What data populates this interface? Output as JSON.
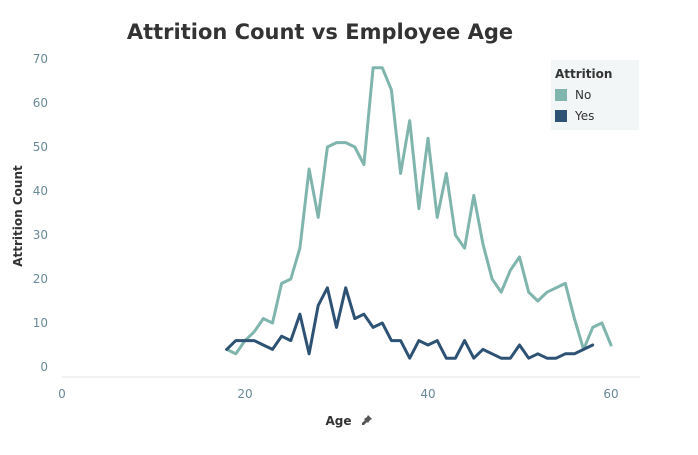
{
  "chart_data": {
    "type": "line",
    "title": "Attrition Count vs Employee Age",
    "xlabel": "Age",
    "ylabel": "Attrition Count",
    "xlim": [
      0,
      62
    ],
    "ylim": [
      0,
      70
    ],
    "xticks": [
      0,
      20,
      40,
      60
    ],
    "yticks": [
      0,
      10,
      20,
      30,
      40,
      50,
      60,
      70
    ],
    "grid": false,
    "legend": {
      "title": "Attrition",
      "position": "top-right"
    },
    "series": [
      {
        "name": "No",
        "color": "#7fb5ad",
        "x": [
          18,
          19,
          20,
          21,
          22,
          23,
          24,
          25,
          26,
          27,
          28,
          29,
          30,
          31,
          32,
          33,
          34,
          35,
          36,
          37,
          38,
          39,
          40,
          41,
          42,
          43,
          44,
          45,
          46,
          47,
          48,
          49,
          50,
          51,
          52,
          53,
          54,
          55,
          56,
          57,
          58,
          59,
          60
        ],
        "y": [
          4,
          3,
          6,
          8,
          11,
          10,
          19,
          20,
          27,
          45,
          34,
          50,
          51,
          51,
          50,
          46,
          68,
          68,
          63,
          44,
          56,
          36,
          52,
          34,
          44,
          30,
          27,
          39,
          28,
          20,
          17,
          22,
          25,
          17,
          15,
          17,
          18,
          19,
          11,
          4,
          9,
          10,
          5
        ]
      },
      {
        "name": "Yes",
        "color": "#2e5274",
        "x": [
          18,
          19,
          20,
          21,
          22,
          23,
          24,
          25,
          26,
          27,
          28,
          29,
          30,
          31,
          32,
          33,
          34,
          35,
          36,
          37,
          38,
          39,
          40,
          41,
          42,
          43,
          44,
          45,
          46,
          47,
          48,
          49,
          50,
          51,
          52,
          53,
          54,
          55,
          56,
          57,
          58
        ],
        "y": [
          4,
          6,
          6,
          6,
          5,
          4,
          7,
          6,
          12,
          3,
          14,
          18,
          9,
          18,
          11,
          12,
          9,
          10,
          6,
          6,
          2,
          6,
          5,
          6,
          2,
          2,
          6,
          2,
          4,
          3,
          2,
          2,
          5,
          2,
          3,
          2,
          2,
          3,
          3,
          4,
          5
        ]
      }
    ]
  }
}
